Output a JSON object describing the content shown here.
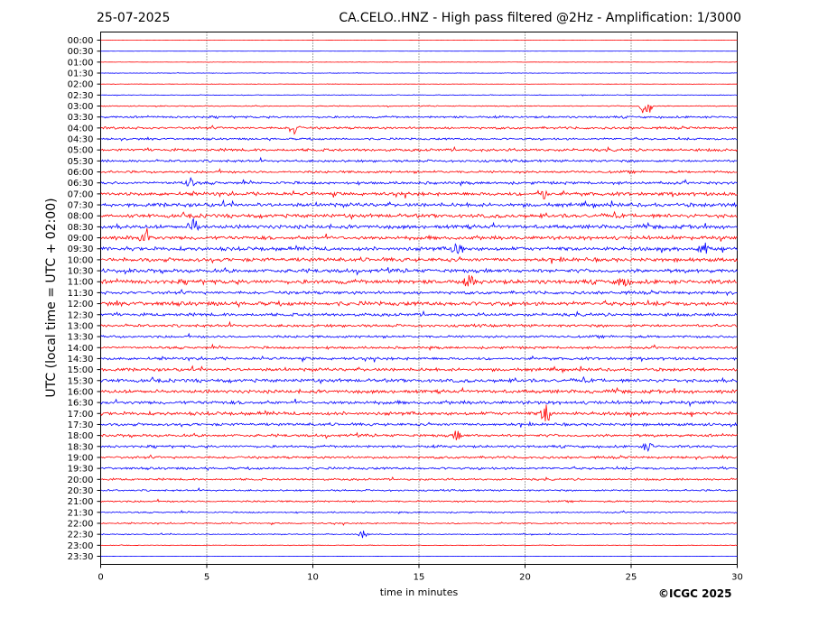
{
  "header": {
    "date": "25-07-2025",
    "title": "CA.CELO..HNZ - High pass filtered @2Hz - Amplification: 1/3000"
  },
  "copyright": "©ICGC 2025",
  "chart_data": {
    "type": "line",
    "title": "CA.CELO..HNZ - High pass filtered @2Hz - Amplification: 1/3000",
    "xlabel": "time in minutes",
    "ylabel": "UTC (local time = UTC + 02:00)",
    "xlim": [
      0,
      30
    ],
    "x_ticks": [
      0,
      5,
      10,
      15,
      20,
      25,
      30
    ],
    "grid": "vertical dotted lines at 5-minute intervals",
    "trace_colors": [
      "#ff0000",
      "#0000ff"
    ],
    "row_labels": [
      "00:00",
      "00:30",
      "01:00",
      "01:30",
      "02:00",
      "02:30",
      "03:00",
      "03:30",
      "04:00",
      "04:30",
      "05:00",
      "05:30",
      "06:00",
      "06:30",
      "07:00",
      "07:30",
      "08:00",
      "08:30",
      "09:00",
      "09:30",
      "10:00",
      "10:30",
      "11:00",
      "11:30",
      "12:00",
      "12:30",
      "13:00",
      "13:30",
      "14:00",
      "14:30",
      "15:00",
      "15:30",
      "16:00",
      "16:30",
      "17:00",
      "17:30",
      "18:00",
      "18:30",
      "19:00",
      "19:30",
      "20:00",
      "20:30",
      "21:00",
      "21:30",
      "22:00",
      "22:30",
      "23:00",
      "23:30"
    ],
    "series": [
      {
        "label": "00:00",
        "noise": 0.02
      },
      {
        "label": "00:30",
        "noise": 0.02
      },
      {
        "label": "01:00",
        "noise": 0.05
      },
      {
        "label": "01:30",
        "noise": 0.08
      },
      {
        "label": "02:00",
        "noise": 0.05
      },
      {
        "label": "02:30",
        "noise": 0.1
      },
      {
        "label": "03:00",
        "noise": 0.15
      },
      {
        "label": "03:30",
        "noise": 0.3
      },
      {
        "label": "04:00",
        "noise": 0.35
      },
      {
        "label": "04:30",
        "noise": 0.3
      },
      {
        "label": "05:00",
        "noise": 0.4
      },
      {
        "label": "05:30",
        "noise": 0.35
      },
      {
        "label": "06:00",
        "noise": 0.35
      },
      {
        "label": "06:30",
        "noise": 0.4
      },
      {
        "label": "07:00",
        "noise": 0.5
      },
      {
        "label": "07:30",
        "noise": 0.55
      },
      {
        "label": "08:00",
        "noise": 0.55
      },
      {
        "label": "08:30",
        "noise": 0.55
      },
      {
        "label": "09:00",
        "noise": 0.55
      },
      {
        "label": "09:30",
        "noise": 0.55
      },
      {
        "label": "10:00",
        "noise": 0.55
      },
      {
        "label": "10:30",
        "noise": 0.55
      },
      {
        "label": "11:00",
        "noise": 0.6
      },
      {
        "label": "11:30",
        "noise": 0.45
      },
      {
        "label": "12:00",
        "noise": 0.6
      },
      {
        "label": "12:30",
        "noise": 0.45
      },
      {
        "label": "13:00",
        "noise": 0.4
      },
      {
        "label": "13:30",
        "noise": 0.35
      },
      {
        "label": "14:00",
        "noise": 0.35
      },
      {
        "label": "14:30",
        "noise": 0.4
      },
      {
        "label": "15:00",
        "noise": 0.45
      },
      {
        "label": "15:30",
        "noise": 0.5
      },
      {
        "label": "16:00",
        "noise": 0.5
      },
      {
        "label": "16:30",
        "noise": 0.5
      },
      {
        "label": "17:00",
        "noise": 0.5
      },
      {
        "label": "17:30",
        "noise": 0.4
      },
      {
        "label": "18:00",
        "noise": 0.4
      },
      {
        "label": "18:30",
        "noise": 0.35
      },
      {
        "label": "19:00",
        "noise": 0.35
      },
      {
        "label": "19:30",
        "noise": 0.35
      },
      {
        "label": "20:00",
        "noise": 0.3
      },
      {
        "label": "20:30",
        "noise": 0.25
      },
      {
        "label": "21:00",
        "noise": 0.25
      },
      {
        "label": "21:30",
        "noise": 0.2
      },
      {
        "label": "22:00",
        "noise": 0.2
      },
      {
        "label": "22:30",
        "noise": 0.15
      },
      {
        "label": "23:00",
        "noise": 0.08
      },
      {
        "label": "23:30",
        "noise": 0.03
      }
    ],
    "events": [
      {
        "row": "03:00",
        "x": 25.7,
        "amp": 2.5,
        "dir": 1
      },
      {
        "row": "04:00",
        "x": 9.1,
        "amp": 1.2
      },
      {
        "row": "06:30",
        "x": 4.2,
        "amp": 0.9
      },
      {
        "row": "07:00",
        "x": 20.8,
        "amp": 1.1
      },
      {
        "row": "08:30",
        "x": 4.4,
        "amp": 1.4
      },
      {
        "row": "09:00",
        "x": 2.1,
        "amp": 1.8
      },
      {
        "row": "09:30",
        "x": 16.8,
        "amp": 1.6
      },
      {
        "row": "09:30",
        "x": 28.4,
        "amp": 1.5
      },
      {
        "row": "11:00",
        "x": 17.4,
        "amp": 1.0
      },
      {
        "row": "11:00",
        "x": 24.6,
        "amp": 1.0
      },
      {
        "row": "17:00",
        "x": 21.0,
        "amp": 1.8
      },
      {
        "row": "18:00",
        "x": 16.8,
        "amp": 0.8
      },
      {
        "row": "18:30",
        "x": 25.8,
        "amp": 0.9
      },
      {
        "row": "22:30",
        "x": 12.4,
        "amp": 0.8
      }
    ]
  }
}
